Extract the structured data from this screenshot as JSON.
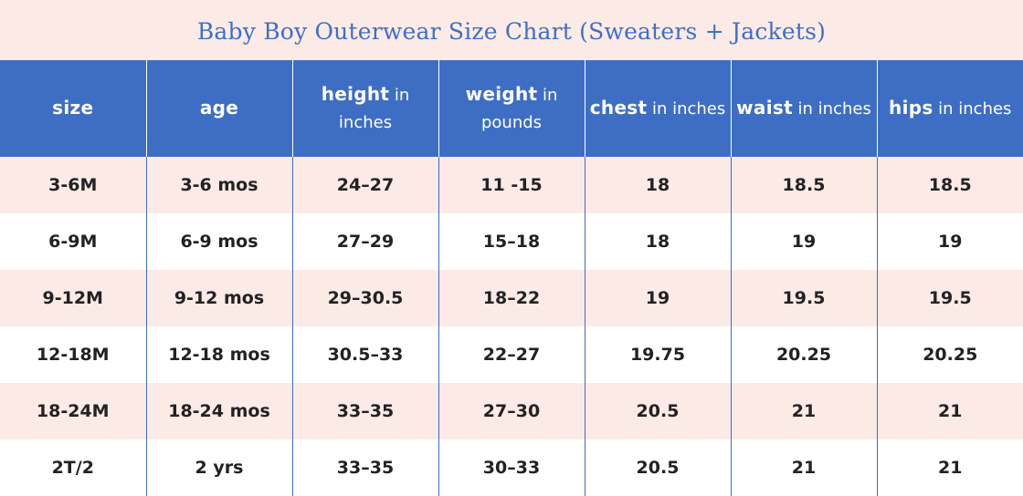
{
  "title": "Baby Boy Outerwear Size Chart (Sweaters + Jackets)",
  "columns": [
    {
      "strong": "size",
      "light": ""
    },
    {
      "strong": "age",
      "light": ""
    },
    {
      "strong": "height",
      "light": "in inches"
    },
    {
      "strong": "weight",
      "light": "in pounds"
    },
    {
      "strong": "chest",
      "light": "in inches"
    },
    {
      "strong": "waist",
      "light": "in inches"
    },
    {
      "strong": "hips",
      "light": "in inches"
    }
  ],
  "rows": [
    [
      "3-6M",
      "3-6 mos",
      "24–27",
      "11 -15",
      "18",
      "18.5",
      "18.5"
    ],
    [
      "6-9M",
      "6-9 mos",
      "27–29",
      "15–18",
      "18",
      "19",
      "19"
    ],
    [
      "9-12M",
      "9-12 mos",
      "29–30.5",
      "18–22",
      "19",
      "19.5",
      "19.5"
    ],
    [
      "12-18M",
      "12-18 mos",
      "30.5–33",
      "22–27",
      "19.75",
      "20.25",
      "20.25"
    ],
    [
      "18-24M",
      "18-24 mos",
      "33–35",
      "27–30",
      "20.5",
      "21",
      "21"
    ],
    [
      "2T/2",
      "2 yrs",
      "33–35",
      "30–33",
      "20.5",
      "21",
      "21"
    ]
  ],
  "colors": {
    "header_bg": "#3d6ec4",
    "title_text": "#3f6fc4",
    "row_alt_bg": "#fbeae6",
    "row_bg": "#ffffff"
  }
}
